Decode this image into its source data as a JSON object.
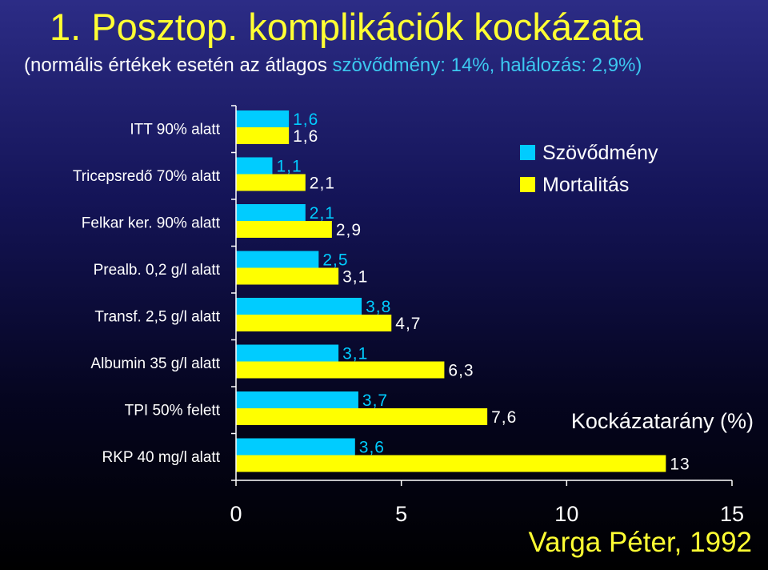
{
  "title": "1. Posztop. komplikációk kockázata",
  "subtitle": {
    "prefix": "(normális értékek esetén az átlagos ",
    "highlight": "szövődmény: 14%, halálozás: 2,9%)"
  },
  "credit": "Varga Péter, 1992",
  "colors": {
    "series1": "#00ccff",
    "series2": "#ffff00",
    "series1_label": "#00ccff",
    "text": "#ffffff",
    "title": "#ffff33"
  },
  "chart_data": {
    "type": "bar",
    "orientation": "horizontal",
    "xlabel": "Kockázatarány (%)",
    "xlim": [
      0,
      15
    ],
    "xticks": [
      0,
      5,
      10,
      15
    ],
    "categories": [
      "ITT 90% alatt",
      "Tricepsredő 70% alatt",
      "Felkar ker. 90% alatt",
      "Prealb. 0,2 g/l alatt",
      "Transf. 2,5 g/l alatt",
      "Albumin 35 g/l alatt",
      "TPI 50% felett",
      "RKP 40 mg/l alatt"
    ],
    "series": [
      {
        "name": "Szövődmény",
        "values": [
          1.6,
          1.1,
          2.1,
          2.5,
          3.8,
          3.1,
          3.7,
          3.6
        ],
        "labels": [
          "1,6",
          "1,1",
          "2,1",
          "2,5",
          "3,8",
          "3,1",
          "3,7",
          "3,6"
        ]
      },
      {
        "name": "Mortalitás",
        "values": [
          1.6,
          2.1,
          2.9,
          3.1,
          4.7,
          6.3,
          7.6,
          13
        ],
        "labels": [
          "1,6",
          "2,1",
          "2,9",
          "3,1",
          "4,7",
          "6,3",
          "7,6",
          "13"
        ]
      }
    ],
    "legend": "top-right"
  }
}
